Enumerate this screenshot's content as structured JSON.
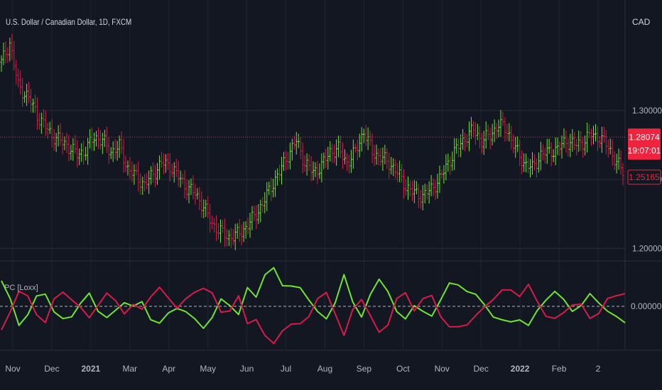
{
  "chart_data": [
    {
      "type": "ohlc",
      "title": "U.S. Dollar / Canadian Dollar, 1D, FXCM",
      "currency": "CAD",
      "ylim": [
        1.195,
        1.375
      ],
      "y_ticks": [
        "1.30000",
        "1.25000",
        "1.20000"
      ],
      "y_tick_values": [
        1.3,
        1.25,
        1.2
      ],
      "x_ticks": [
        "Nov",
        "Dec",
        "2021",
        "Mar",
        "Apr",
        "May",
        "Jun",
        "Jul",
        "Aug",
        "Sep",
        "Oct",
        "Nov",
        "Dec",
        "2022",
        "Feb",
        "2"
      ],
      "x_tick_bold": [
        false,
        false,
        true,
        false,
        false,
        false,
        false,
        false,
        false,
        false,
        false,
        false,
        false,
        true,
        false,
        false
      ],
      "close_path": [
        [
          0,
          1.335
        ],
        [
          4,
          1.349
        ],
        [
          8,
          1.318
        ],
        [
          13,
          1.309
        ],
        [
          18,
          1.294
        ],
        [
          24,
          1.282
        ],
        [
          31,
          1.275
        ],
        [
          36,
          1.268
        ],
        [
          40,
          1.271
        ],
        [
          44,
          1.281
        ],
        [
          48,
          1.278
        ],
        [
          52,
          1.27
        ],
        [
          56,
          1.274
        ],
        [
          60,
          1.258
        ],
        [
          64,
          1.252
        ],
        [
          68,
          1.246
        ],
        [
          72,
          1.254
        ],
        [
          76,
          1.262
        ],
        [
          80,
          1.26
        ],
        [
          84,
          1.252
        ],
        [
          88,
          1.244
        ],
        [
          92,
          1.24
        ],
        [
          96,
          1.23
        ],
        [
          100,
          1.218
        ],
        [
          104,
          1.212
        ],
        [
          108,
          1.208
        ],
        [
          112,
          1.21
        ],
        [
          116,
          1.215
        ],
        [
          120,
          1.223
        ],
        [
          124,
          1.232
        ],
        [
          128,
          1.245
        ],
        [
          132,
          1.255
        ],
        [
          136,
          1.268
        ],
        [
          140,
          1.278
        ],
        [
          144,
          1.262
        ],
        [
          148,
          1.255
        ],
        [
          152,
          1.26
        ],
        [
          156,
          1.27
        ],
        [
          160,
          1.272
        ],
        [
          164,
          1.262
        ],
        [
          168,
          1.27
        ],
        [
          172,
          1.285
        ],
        [
          176,
          1.27
        ],
        [
          180,
          1.266
        ],
        [
          184,
          1.262
        ],
        [
          188,
          1.255
        ],
        [
          192,
          1.245
        ],
        [
          196,
          1.24
        ],
        [
          200,
          1.238
        ],
        [
          204,
          1.243
        ],
        [
          208,
          1.25
        ],
        [
          212,
          1.262
        ],
        [
          216,
          1.272
        ],
        [
          220,
          1.28
        ],
        [
          224,
          1.286
        ],
        [
          228,
          1.278
        ],
        [
          232,
          1.282
        ],
        [
          236,
          1.29
        ],
        [
          240,
          1.286
        ],
        [
          244,
          1.272
        ],
        [
          248,
          1.262
        ],
        [
          252,
          1.258
        ],
        [
          256,
          1.268
        ],
        [
          260,
          1.27
        ],
        [
          264,
          1.272
        ],
        [
          268,
          1.278
        ],
        [
          272,
          1.275
        ],
        [
          276,
          1.277
        ],
        [
          280,
          1.283
        ],
        [
          284,
          1.28
        ],
        [
          288,
          1.274
        ],
        [
          292,
          1.262
        ],
        [
          295,
          1.256
        ]
      ],
      "last_close_series": [
        {
          "close": 1.28074,
          "bull_run_value": 1.28074
        }
      ],
      "badges": {
        "price": "1.28074",
        "countdown": "19:07:01",
        "secondary": "1.25165"
      },
      "price_line_value": 1.28074,
      "secondary_value": 1.25165,
      "colors": {
        "bull": "#6ee62c",
        "bear": "#d81b48",
        "background": "#131722",
        "grid": "#2a2e39",
        "axis_text": "#b2b5be",
        "badge": "#f0233f"
      },
      "grid": true
    },
    {
      "type": "line",
      "title": "PC [Loxx]",
      "y_ticks": [
        "0.00000"
      ],
      "zero_line": "dashed",
      "series": [
        {
          "color": "#6ee62c",
          "values": [
            0.9,
            0.2,
            -0.6,
            -0.3,
            0.3,
            0.5,
            -0.2,
            -0.5,
            -0.3,
            0.1,
            0.4,
            -0.1,
            -0.4,
            -0.2,
            0.2,
            0.0,
            0.1,
            -0.4,
            -0.6,
            -0.3,
            0.0,
            -0.2,
            -0.5,
            -0.7,
            -0.4,
            0.2,
            0.1,
            -0.3,
            0.6,
            0.4,
            1.1,
            1.3,
            0.8,
            0.7,
            0.6,
            0.3,
            -0.2,
            -0.5,
            0.2,
            1.1,
            0.1,
            -0.3,
            0.4,
            0.9,
            0.6,
            -0.2,
            -0.5,
            0.1,
            -0.2,
            -0.4,
            0.3,
            0.8,
            0.7,
            0.6,
            0.4,
            0.0,
            -0.3,
            -0.5,
            -0.6,
            -0.4,
            -0.7,
            -0.2,
            0.3,
            0.5,
            0.2,
            -0.1,
            0.0,
            0.4,
            0.2,
            -0.2,
            -0.4,
            -0.5
          ]
        },
        {
          "color": "#d81b48",
          "values": [
            -0.9,
            -0.2,
            0.6,
            0.3,
            -0.3,
            -0.5,
            0.2,
            0.5,
            0.3,
            -0.1,
            -0.4,
            0.1,
            0.4,
            0.2,
            -0.2,
            0.0,
            -0.1,
            0.4,
            0.6,
            0.3,
            0.0,
            0.2,
            0.5,
            0.7,
            0.4,
            -0.2,
            -0.1,
            0.3,
            -0.6,
            -0.4,
            -1.1,
            -1.3,
            -0.8,
            -0.7,
            -0.6,
            -0.3,
            0.2,
            0.5,
            -0.2,
            -1.1,
            -0.1,
            0.3,
            -0.4,
            -0.9,
            -0.6,
            0.2,
            0.5,
            -0.1,
            0.2,
            0.4,
            -0.3,
            -0.8,
            -0.7,
            -0.6,
            -0.4,
            0.0,
            0.3,
            0.5,
            0.6,
            0.4,
            0.7,
            0.2,
            -0.3,
            -0.5,
            -0.2,
            0.1,
            0.0,
            -0.4,
            -0.2,
            0.2,
            0.4,
            0.5
          ]
        }
      ],
      "ylim": [
        -1.5,
        1.5
      ]
    }
  ],
  "labels": {
    "title": "U.S. Dollar / Canadian Dollar, 1D, FXCM",
    "currency": "CAD",
    "indicator": "PC [Loxx]"
  }
}
